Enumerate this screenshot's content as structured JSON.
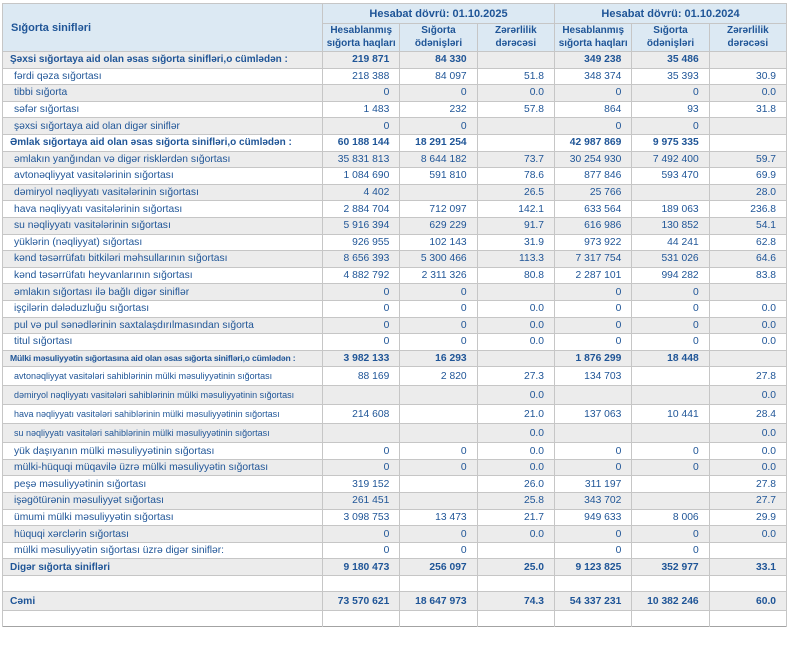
{
  "colors": {
    "header_bg": "#dce9f3",
    "alt_row_bg": "#ececec",
    "text": "#1f5597",
    "border": "#c6c6c6"
  },
  "table": {
    "label_header": "Sığorta sinifləri",
    "groups": [
      {
        "title": "Hesabat dövrü: 01.10.2025",
        "columns": [
          "Hesablanmış sığorta haqları",
          "Sığorta ödənişləri",
          "Zərərlilik dərəcəsi"
        ]
      },
      {
        "title": "Hesabat dövrü: 01.10.2024",
        "columns": [
          "Hesablanmış sığorta haqları",
          "Sığorta ödənişləri",
          "Zərərlilik dərəcəsi"
        ]
      }
    ],
    "rows": [
      {
        "label": "Şəxsi sığortaya aid olan əsas sığorta sinifləri,o cümlədən :",
        "style": "section",
        "values": [
          "219 871",
          "84 330",
          "",
          "349 238",
          "35 486",
          ""
        ]
      },
      {
        "label": "fərdi qəza sığortası",
        "style": "",
        "values": [
          "218 388",
          "84 097",
          "51.8",
          "348 374",
          "35 393",
          "30.9"
        ]
      },
      {
        "label": "tibbi sığorta",
        "style": "",
        "values": [
          "0",
          "0",
          "0.0",
          "0",
          "0",
          "0.0"
        ]
      },
      {
        "label": "səfər sığortası",
        "style": "",
        "values": [
          "1 483",
          "232",
          "57.8",
          "864",
          "93",
          "31.8"
        ]
      },
      {
        "label": "şəxsi sığortaya aid olan digər siniflər",
        "style": "",
        "values": [
          "0",
          "0",
          "",
          "0",
          "0",
          ""
        ]
      },
      {
        "label": "Əmlak sığortaya aid olan əsas sığorta sinifləri,o cümlədən :",
        "style": "section",
        "values": [
          "60 188 144",
          "18 291 254",
          "",
          "42 987 869",
          "9 975 335",
          ""
        ]
      },
      {
        "label": "əmlakın yanğından və digər risklərdən sığortası",
        "style": "",
        "values": [
          "35 831 813",
          "8 644 182",
          "73.7",
          "30 254 930",
          "7 492 400",
          "59.7"
        ]
      },
      {
        "label": "avtonəqliyyat vasitələrinin sığortası",
        "style": "",
        "values": [
          "1 084 690",
          "591 810",
          "78.6",
          "877 846",
          "593 470",
          "69.9"
        ]
      },
      {
        "label": "dəmiryol nəqliyyatı vasitələrinin sığortası",
        "style": "",
        "values": [
          "4 402",
          "",
          "26.5",
          "25 766",
          "",
          "28.0"
        ]
      },
      {
        "label": "hava nəqliyyatı vasitələrinin sığortası",
        "style": "",
        "values": [
          "2 884 704",
          "712 097",
          "142.1",
          "633 564",
          "189 063",
          "236.8"
        ]
      },
      {
        "label": "su nəqliyyatı vasitələrinin sığortası",
        "style": "",
        "values": [
          "5 916 394",
          "629 229",
          "91.7",
          "616 986",
          "130 852",
          "54.1"
        ]
      },
      {
        "label": "yüklərin (nəqliyyat) sığortası",
        "style": "",
        "values": [
          "926 955",
          "102 143",
          "31.9",
          "973 922",
          "44 241",
          "62.8"
        ]
      },
      {
        "label": "kənd təsərrüfatı bitkiləri məhsullarının sığortası",
        "style": "",
        "values": [
          "8 656 393",
          "5 300 466",
          "113.3",
          "7 317 754",
          "531 026",
          "64.6"
        ]
      },
      {
        "label": "kənd təsərrüfatı heyvanlarının sığortası",
        "style": "",
        "values": [
          "4 882 792",
          "2 311 326",
          "80.8",
          "2 287 101",
          "994 282",
          "83.8"
        ]
      },
      {
        "label": "əmlakın sığortası ilə bağlı digər siniflər",
        "style": "",
        "values": [
          "0",
          "0",
          "",
          "0",
          "0",
          ""
        ]
      },
      {
        "label": "işçilərin dələduzluğu sığortası",
        "style": "",
        "values": [
          "0",
          "0",
          "0.0",
          "0",
          "0",
          "0.0"
        ]
      },
      {
        "label": "pul və pul sənədlərinin saxtalaşdırılmasından sığorta",
        "style": "",
        "values": [
          "0",
          "0",
          "0.0",
          "0",
          "0",
          "0.0"
        ]
      },
      {
        "label": "titul sığortası",
        "style": "",
        "values": [
          "0",
          "0",
          "0.0",
          "0",
          "0",
          "0.0"
        ]
      },
      {
        "label": "Mülki məsuliyyətin sığortasına aid olan əsas sığorta sinifləri,o cümlədən :",
        "style": "section shrink",
        "values": [
          "3 982 133",
          "16 293",
          "",
          "1 876 299",
          "18 448",
          ""
        ]
      },
      {
        "label": "avtonəqliyyat vasitələri sahiblərinin mülki məsuliyyətinin sığortası",
        "style": "small",
        "values": [
          "88 169",
          "2 820",
          "27.3",
          "134 703",
          "",
          "27.8"
        ]
      },
      {
        "label": "dəmiryol nəqliyyatı vasitələri sahiblərinin mülki məsuliyyətinin sığortası",
        "style": "small",
        "values": [
          "",
          "",
          "0.0",
          "",
          "",
          "0.0"
        ]
      },
      {
        "label": "hava nəqliyyatı vasitələri sahiblərinin mülki məsuliyyətinin sığortası",
        "style": "small",
        "values": [
          "214 608",
          "",
          "21.0",
          "137 063",
          "10 441",
          "28.4"
        ]
      },
      {
        "label": "su nəqliyyatı vasitələri sahiblərinin mülki məsuliyyətinin sığortası",
        "style": "small",
        "values": [
          "",
          "",
          "0.0",
          "",
          "",
          "0.0"
        ]
      },
      {
        "label": "yük daşıyanın mülki məsuliyyətinin sığortası",
        "style": "",
        "values": [
          "0",
          "0",
          "0.0",
          "0",
          "0",
          "0.0"
        ]
      },
      {
        "label": "mülki-hüquqi müqavilə üzrə mülki məsuliyyətin sığortası",
        "style": "",
        "values": [
          "0",
          "0",
          "0.0",
          "0",
          "0",
          "0.0"
        ]
      },
      {
        "label": "peşə məsuliyyətinin sığortası",
        "style": "",
        "values": [
          "319 152",
          "",
          "26.0",
          "311 197",
          "",
          "27.8"
        ]
      },
      {
        "label": "işəgötürənin məsuliyyət sığortası",
        "style": "",
        "values": [
          "261 451",
          "",
          "25.8",
          "343 702",
          "",
          "27.7"
        ]
      },
      {
        "label": "ümumi mülki məsuliyyətin sığortası",
        "style": "",
        "values": [
          "3 098 753",
          "13 473",
          "21.7",
          "949 633",
          "8 006",
          "29.9"
        ]
      },
      {
        "label": "hüquqi xərclərin sığortası",
        "style": "",
        "values": [
          "0",
          "0",
          "0.0",
          "0",
          "0",
          "0.0"
        ]
      },
      {
        "label": "mülki məsuliyyətin sığortası üzrə digər siniflər:",
        "style": "",
        "values": [
          "0",
          "0",
          "",
          "0",
          "0",
          ""
        ]
      },
      {
        "label": "Digər sığorta sinifləri",
        "style": "section",
        "values": [
          "9 180 473",
          "256 097",
          "25.0",
          "9 123 825",
          "352 977",
          "33.1"
        ]
      },
      {
        "label": "",
        "style": "spacer",
        "values": [
          "",
          "",
          "",
          "",
          "",
          ""
        ]
      },
      {
        "label": "Cəmi",
        "style": "total",
        "values": [
          "73 570 621",
          "18 647 973",
          "74.3",
          "54 337 231",
          "10 382 246",
          "60.0"
        ]
      }
    ]
  }
}
